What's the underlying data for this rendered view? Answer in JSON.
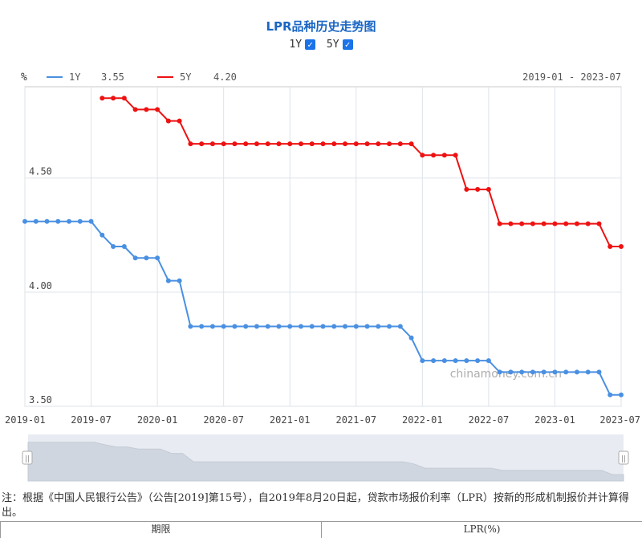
{
  "header": {
    "title": "LPR品种历史走势图",
    "toggle_1y_label": "1Y",
    "toggle_5y_label": "5Y"
  },
  "legend": {
    "unit": "%",
    "items": [
      {
        "label": "1Y",
        "value": "3.55",
        "color": "#4a90e2"
      },
      {
        "label": "5Y",
        "value": "4.20",
        "color": "#ee1111"
      }
    ],
    "range": "2019-01 - 2023-07"
  },
  "watermark": "chinamoney.com.cn",
  "chart_data": {
    "type": "line",
    "ylim": [
      3.5,
      4.9
    ],
    "y_ticks": [
      3.5,
      4.0,
      4.5
    ],
    "y_tick_labels": [
      "3.50",
      "4.00",
      "4.50"
    ],
    "x_ticks": [
      "2019-01",
      "2019-07",
      "2020-01",
      "2020-07",
      "2021-01",
      "2021-07",
      "2022-01",
      "2022-07",
      "2023-01",
      "2023-07"
    ],
    "dates": [
      "2019-01",
      "2019-02",
      "2019-03",
      "2019-04",
      "2019-05",
      "2019-06",
      "2019-07",
      "2019-08",
      "2019-09",
      "2019-10",
      "2019-11",
      "2019-12",
      "2020-01",
      "2020-02",
      "2020-03",
      "2020-04",
      "2020-05",
      "2020-06",
      "2020-07",
      "2020-08",
      "2020-09",
      "2020-10",
      "2020-11",
      "2020-12",
      "2021-01",
      "2021-02",
      "2021-03",
      "2021-04",
      "2021-05",
      "2021-06",
      "2021-07",
      "2021-08",
      "2021-09",
      "2021-10",
      "2021-11",
      "2021-12",
      "2022-01",
      "2022-02",
      "2022-03",
      "2022-04",
      "2022-05",
      "2022-06",
      "2022-07",
      "2022-08",
      "2022-09",
      "2022-10",
      "2022-11",
      "2022-12",
      "2023-01",
      "2023-02",
      "2023-03",
      "2023-04",
      "2023-05",
      "2023-06",
      "2023-07"
    ],
    "series": [
      {
        "name": "1Y",
        "color": "#4a90e2",
        "values": [
          4.31,
          4.31,
          4.31,
          4.31,
          4.31,
          4.31,
          4.31,
          4.25,
          4.2,
          4.2,
          4.15,
          4.15,
          4.15,
          4.05,
          4.05,
          3.85,
          3.85,
          3.85,
          3.85,
          3.85,
          3.85,
          3.85,
          3.85,
          3.85,
          3.85,
          3.85,
          3.85,
          3.85,
          3.85,
          3.85,
          3.85,
          3.85,
          3.85,
          3.85,
          3.85,
          3.8,
          3.7,
          3.7,
          3.7,
          3.7,
          3.7,
          3.7,
          3.7,
          3.65,
          3.65,
          3.65,
          3.65,
          3.65,
          3.65,
          3.65,
          3.65,
          3.65,
          3.65,
          3.55,
          3.55
        ]
      },
      {
        "name": "5Y",
        "color": "#ee1111",
        "values": [
          null,
          null,
          null,
          null,
          null,
          null,
          null,
          4.85,
          4.85,
          4.85,
          4.8,
          4.8,
          4.8,
          4.75,
          4.75,
          4.65,
          4.65,
          4.65,
          4.65,
          4.65,
          4.65,
          4.65,
          4.65,
          4.65,
          4.65,
          4.65,
          4.65,
          4.65,
          4.65,
          4.65,
          4.65,
          4.65,
          4.65,
          4.65,
          4.65,
          4.65,
          4.6,
          4.6,
          4.6,
          4.6,
          4.45,
          4.45,
          4.45,
          4.3,
          4.3,
          4.3,
          4.3,
          4.3,
          4.3,
          4.3,
          4.3,
          4.3,
          4.3,
          4.2,
          4.2
        ]
      }
    ],
    "grid": "vertical and horizontal"
  },
  "footnote": "注：根据《中国人民银行公告》（公告[2019]第15号），自2019年8月20日起，贷款市场报价利率（LPR）按新的形成机制报价并计算得出。",
  "table": {
    "col1": "期限",
    "col2": "LPR(%)"
  }
}
